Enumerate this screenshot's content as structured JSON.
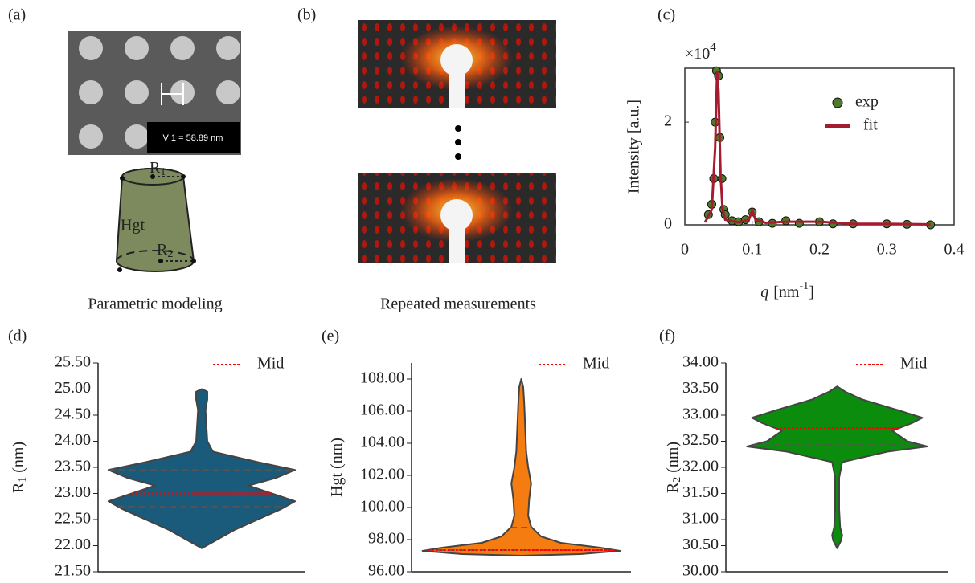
{
  "panel_a": {
    "label": "(a)",
    "scale_text": "V 1 = 58.89 nm",
    "r1": "R",
    "r1_sub": "1",
    "hgt": "Hgt",
    "r2": "R",
    "r2_sub": "2",
    "caption": "Parametric modeling"
  },
  "panel_b": {
    "label": "(b)",
    "caption": "Repeated measurements"
  },
  "chart_data": [
    {
      "label": "(c)",
      "type": "line",
      "y_label": "Intensity [a.u.]",
      "multiplier": "×10",
      "multiplier_exp": "4",
      "x_label": "q",
      "x_label_unit": "[nm",
      "x_label_exp": "-1",
      "x_label_end": "]",
      "xlim": [
        0,
        0.4
      ],
      "xticks": [
        0,
        0.1,
        0.2,
        0.3,
        0.4
      ],
      "ylim": [
        0,
        3.05
      ],
      "yticks": [
        0,
        2
      ],
      "legend": "upper right",
      "series": [
        {
          "name": "exp",
          "style": "markers",
          "color": "#4f7a2a",
          "x": [
            0.035,
            0.04,
            0.043,
            0.045,
            0.047,
            0.05,
            0.052,
            0.055,
            0.058,
            0.06,
            0.07,
            0.08,
            0.09,
            0.1,
            0.11,
            0.13,
            0.15,
            0.17,
            0.2,
            0.22,
            0.25,
            0.3,
            0.33,
            0.365
          ],
          "values": [
            0.2,
            0.4,
            0.9,
            2.0,
            3.0,
            2.9,
            1.7,
            0.9,
            0.3,
            0.2,
            0.08,
            0.06,
            0.1,
            0.25,
            0.06,
            0.03,
            0.08,
            0.03,
            0.06,
            0.02,
            0.02,
            0.02,
            0.01,
            0.0
          ]
        },
        {
          "name": "fit",
          "style": "line",
          "color": "#a51c30",
          "x": [
            0.03,
            0.04,
            0.045,
            0.048,
            0.05,
            0.053,
            0.056,
            0.06,
            0.08,
            0.095,
            0.1,
            0.105,
            0.12,
            0.15,
            0.2,
            0.25,
            0.3,
            0.365
          ],
          "values": [
            0.05,
            0.3,
            1.5,
            3.0,
            2.6,
            1.0,
            0.3,
            0.1,
            0.05,
            0.1,
            0.28,
            0.1,
            0.04,
            0.06,
            0.06,
            0.02,
            0.02,
            0.01
          ]
        }
      ]
    },
    {
      "label": "(d)",
      "type": "violin",
      "y_label": "R",
      "y_label_sub": "1",
      "y_label_unit": " (nm)",
      "color": "#1a5a7a",
      "median_color": "#ff0000",
      "legend_label": "Mid",
      "legend": "upper right",
      "ylim": [
        21.5,
        25.5
      ],
      "yticks": [
        {
          "value": 21.5,
          "label": "21.50"
        },
        {
          "value": 22,
          "label": "22.00"
        },
        {
          "value": 22.5,
          "label": "22.50"
        },
        {
          "value": 23,
          "label": "23.00"
        },
        {
          "value": 23.5,
          "label": "23.50"
        },
        {
          "value": 24,
          "label": "24.00"
        },
        {
          "value": 24.5,
          "label": "24.50"
        },
        {
          "value": 25,
          "label": "25.00"
        },
        {
          "value": 25.5,
          "label": "25.50"
        }
      ],
      "profile": {
        "y": [
          21.95,
          22.1,
          22.3,
          22.5,
          22.7,
          22.85,
          23.0,
          23.15,
          23.3,
          23.45,
          23.6,
          23.8,
          24.0,
          24.3,
          24.6,
          24.8,
          24.95,
          25.0
        ],
        "density": [
          0,
          0.15,
          0.35,
          0.6,
          0.85,
          1.0,
          0.75,
          0.5,
          0.8,
          1.0,
          0.6,
          0.12,
          0.06,
          0.05,
          0.04,
          0.06,
          0.06,
          0
        ]
      },
      "median": 23.0,
      "quartiles": [
        22.75,
        23.45
      ]
    },
    {
      "label": "(e)",
      "type": "violin",
      "y_label": "Hgt (nm)",
      "color": "#f47c10",
      "median_color": "#ff0000",
      "legend_label": "Mid",
      "legend": "upper right",
      "ylim": [
        96,
        109
      ],
      "yticks": [
        {
          "value": 96,
          "label": "96.00"
        },
        {
          "value": 98,
          "label": "98.00"
        },
        {
          "value": 100,
          "label": "100.00"
        },
        {
          "value": 102,
          "label": "102.00"
        },
        {
          "value": 104,
          "label": "104.00"
        },
        {
          "value": 106,
          "label": "106.00"
        },
        {
          "value": 108,
          "label": "108.00"
        }
      ],
      "profile": {
        "y": [
          97.0,
          97.1,
          97.3,
          97.5,
          97.8,
          98.2,
          98.8,
          99.5,
          100.5,
          101.5,
          102.5,
          103.5,
          105,
          106.5,
          107.5,
          108
        ],
        "density": [
          0,
          0.6,
          1.0,
          0.8,
          0.4,
          0.2,
          0.1,
          0.07,
          0.08,
          0.1,
          0.07,
          0.05,
          0.04,
          0.03,
          0.02,
          0
        ]
      },
      "median": 97.35,
      "quartiles": [
        97.35,
        98.75
      ]
    },
    {
      "label": "(f)",
      "type": "violin",
      "y_label": "R",
      "y_label_sub": "2",
      "y_label_unit": " (nm)",
      "color": "#0c8c0c",
      "median_color": "#ff0000",
      "legend_label": "Mid",
      "legend": "upper right",
      "ylim": [
        30,
        34
      ],
      "yticks": [
        {
          "value": 30,
          "label": "30.00"
        },
        {
          "value": 30.5,
          "label": "30.50"
        },
        {
          "value": 31,
          "label": "31.00"
        },
        {
          "value": 31.5,
          "label": "31.50"
        },
        {
          "value": 32,
          "label": "32.00"
        },
        {
          "value": 32.5,
          "label": "32.50"
        },
        {
          "value": 33,
          "label": "33.00"
        },
        {
          "value": 33.5,
          "label": "33.50"
        },
        {
          "value": 34,
          "label": "34.00"
        }
      ],
      "profile": {
        "y": [
          30.45,
          30.6,
          30.7,
          30.85,
          31.2,
          31.8,
          32.1,
          32.3,
          32.4,
          32.5,
          32.7,
          32.85,
          32.95,
          33.1,
          33.3,
          33.45,
          33.55
        ],
        "density": [
          0,
          0.04,
          0.05,
          0.03,
          0.02,
          0.02,
          0.05,
          0.5,
          0.9,
          0.7,
          0.55,
          0.75,
          0.85,
          0.6,
          0.25,
          0.08,
          0
        ]
      },
      "median": 32.75,
      "quartiles": [
        32.43,
        32.95
      ]
    }
  ]
}
